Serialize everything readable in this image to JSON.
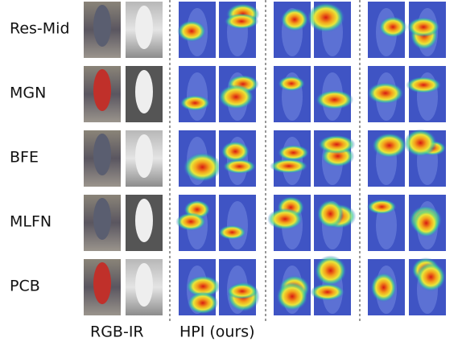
{
  "rows": [
    "Res-Mid",
    "MGN",
    "BFE",
    "MLFN",
    "PCB"
  ],
  "footer": {
    "input_label": "RGB-IR",
    "method_label": "HPI (ours)"
  }
}
